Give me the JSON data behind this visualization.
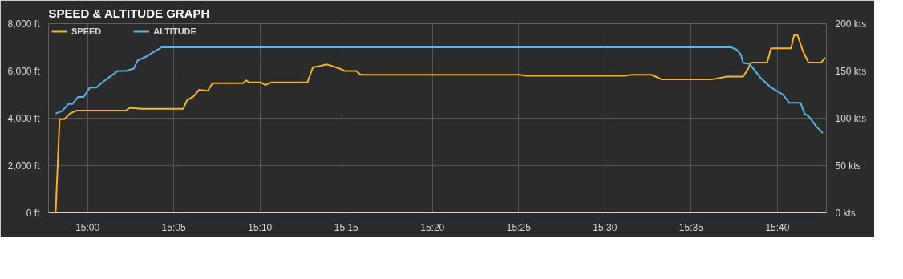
{
  "chart_data": {
    "type": "line",
    "title": "SPEED & ALTITUDE GRAPH",
    "legend": "top",
    "grid": true,
    "marker": "none",
    "line_style": "solid",
    "xlim": [
      14.9623,
      15.714
    ],
    "xticks": [
      {
        "value": 15.0,
        "label": "15:00"
      },
      {
        "value": 15.0833,
        "label": "15:05"
      },
      {
        "value": 15.1667,
        "label": "15:10"
      },
      {
        "value": 15.25,
        "label": "15:15"
      },
      {
        "value": 15.3333,
        "label": "15:20"
      },
      {
        "value": 15.4167,
        "label": "15:25"
      },
      {
        "value": 15.5,
        "label": "15:30"
      },
      {
        "value": 15.5833,
        "label": "15:35"
      },
      {
        "value": 15.6667,
        "label": "15:40"
      }
    ],
    "ylim": [
      0,
      8000
    ],
    "yticks": [
      {
        "value": 0,
        "label": "0 ft"
      },
      {
        "value": 2000,
        "label": "2,000 ft"
      },
      {
        "value": 4000,
        "label": "4,000 ft"
      },
      {
        "value": 6000,
        "label": "6,000 ft"
      },
      {
        "value": 8000,
        "label": "8,000 ft"
      }
    ],
    "y2lim": [
      0,
      200
    ],
    "y2ticks": [
      {
        "value": 0,
        "label": "0 kts"
      },
      {
        "value": 50,
        "label": "50 kts"
      },
      {
        "value": 100,
        "label": "100 kts"
      },
      {
        "value": 150,
        "label": "150 kts"
      },
      {
        "value": 200,
        "label": "200 kts"
      }
    ],
    "series": [
      {
        "name": "SPEED",
        "color": "#f4b526",
        "axis": "y2",
        "x": [
          14.9692,
          14.973,
          14.9777,
          14.983,
          14.9892,
          15.037,
          15.0408,
          15.0523,
          15.0923,
          15.0962,
          15.1023,
          15.1078,
          15.1162,
          15.1208,
          15.1502,
          15.1532,
          15.1563,
          15.1678,
          15.1717,
          15.1778,
          15.2125,
          15.2178,
          15.224,
          15.231,
          15.2372,
          15.2425,
          15.2487,
          15.2595,
          15.264,
          15.2717,
          15.418,
          15.4242,
          15.5182,
          15.5258,
          15.545,
          15.555,
          15.6028,
          15.6182,
          15.6335,
          15.6382,
          15.6413,
          15.6567,
          15.6605,
          15.6798,
          15.6828,
          15.686,
          15.6913,
          15.6967,
          15.709,
          15.7128
        ],
        "values": [
          0,
          99,
          99,
          105,
          108,
          108,
          111,
          110,
          110,
          119,
          123,
          130,
          129,
          137,
          137,
          140,
          138,
          138,
          135,
          138,
          138,
          154,
          155,
          157,
          155,
          153,
          150,
          150,
          146,
          146,
          146,
          145,
          145,
          146,
          146,
          141,
          141,
          144,
          144,
          152,
          159,
          159,
          174,
          174,
          188,
          188,
          171,
          159,
          159,
          164
        ]
      },
      {
        "name": "ALTITUDE",
        "color": "#5ab4e4",
        "x": [
          14.9692,
          14.9753,
          14.9815,
          14.9853,
          14.9908,
          14.9962,
          15.0023,
          15.0085,
          15.0138,
          15.0215,
          15.0293,
          15.037,
          15.0447,
          15.0485,
          15.0562,
          15.0638,
          15.0717,
          15.622,
          15.6273,
          15.6313,
          15.6335,
          15.6397,
          15.6452,
          15.6505,
          15.6605,
          15.672,
          15.6782,
          15.689,
          15.6928,
          15.6975,
          15.7043,
          15.7105
        ],
        "values": [
          4200,
          4300,
          4600,
          4600,
          4900,
          4900,
          5300,
          5300,
          5500,
          5750,
          6000,
          6000,
          6100,
          6450,
          6600,
          6800,
          7000,
          7000,
          6900,
          6700,
          6350,
          6300,
          6000,
          5700,
          5300,
          5000,
          4650,
          4650,
          4200,
          4050,
          3650,
          3370
        ]
      }
    ]
  }
}
